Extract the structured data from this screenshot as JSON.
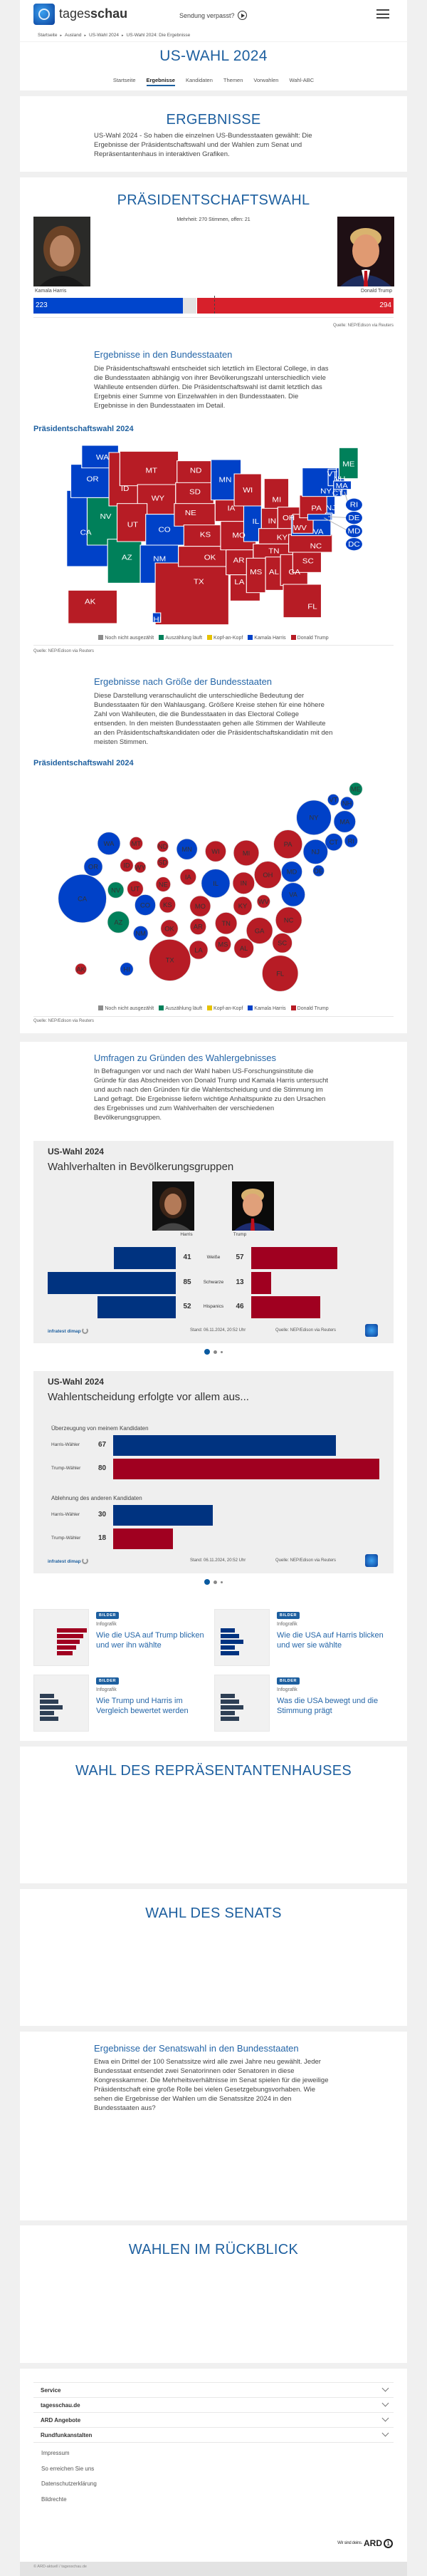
{
  "header": {
    "brand_light": "tages",
    "brand_bold": "schau",
    "missed_broadcast": "Sendung verpasst?"
  },
  "breadcrumb": [
    "Startseite",
    "Ausland",
    "US-Wahl 2024",
    "US-Wahl 2024: Die Ergebnisse"
  ],
  "page_title": "US-WAHL 2024",
  "nav": [
    {
      "label": "Startseite",
      "active": false
    },
    {
      "label": "Ergebnisse",
      "active": true
    },
    {
      "label": "Kandidaten",
      "active": false
    },
    {
      "label": "Themen",
      "active": false
    },
    {
      "label": "Vorwahlen",
      "active": false
    },
    {
      "label": "Wahl-ABC",
      "active": false
    }
  ],
  "intro": {
    "title": "ERGEBNISSE",
    "text": "US-Wahl 2024 - So haben die einzelnen US-Bundesstaaten gewählt: Die Ergebnisse der Präsidentschaftswahl und der Wahlen zum Senat und Repräsentantenhaus in interaktiven Grafiken."
  },
  "colors": {
    "harris": "#0041c8",
    "trump": "#b71c25",
    "counting": "#00805a",
    "not_counted": "#8c8c8c",
    "tossup": "#e6c200",
    "open": "#e2e2e2",
    "harris_dark": "#003380",
    "trump_dark": "#a00020",
    "heading": "#1d5f9f"
  },
  "president": {
    "title": "PRÄSIDENTSCHAFTSWAHL",
    "majority_text": "Mehrheit: 270 Stimmen, offen: 21",
    "total": 538,
    "majority": 270,
    "harris": {
      "name": "Kamala Harris",
      "votes": 223
    },
    "trump": {
      "name": "Donald Trump",
      "votes": 294
    },
    "source": "Quelle: NEP/Edison via Reuters"
  },
  "states_section": {
    "heading": "Ergebnisse in den Bundesstaaten",
    "text": "Die Präsidentschaftswahl entscheidet sich letztlich im Electoral College, in das die Bundesstaaten abhängig von ihrer Bevölkerungszahl unterschiedlich viele Wahlleute entsenden dürfen. Die Präsidentschaftswahl ist damit letztlich das Ergebnis einer Summe von Einzelwahlen in den Bundesstaaten. Die Ergebnisse in den Bundesstaaten im Detail."
  },
  "legend": [
    {
      "key": "not_counted",
      "label": "Noch nicht ausgezählt"
    },
    {
      "key": "counting",
      "label": "Auszählung läuft"
    },
    {
      "key": "tossup",
      "label": "Kopf-an-Kopf"
    },
    {
      "key": "harris",
      "label": "Kamala Harris"
    },
    {
      "key": "trump",
      "label": "Donald Trump"
    }
  ],
  "map": {
    "title": "Präsidentschaftswahl 2024",
    "source": "Quelle: NEP/Edison via Reuters",
    "callouts": [
      "RI",
      "DE",
      "MD",
      "DC"
    ]
  },
  "size_section": {
    "heading": "Ergebnisse nach Größe der Bundesstaaten",
    "text": "Diese Darstellung veranschaulicht die unterschiedliche Bedeutung der Bundesstaaten für den Wahlausgang. Größere Kreise stehen für eine höhere Zahl von Wahlleuten, die die Bundesstaaten in das Electoral College entsenden. In den meisten Bundesstaaten gehen alle Stimmen der Wahlleute an den Präsidentschaftskandidaten oder die Präsidentschaftskandidatin mit den meisten Stimmen.",
    "chart_title": "Präsidentschaftswahl 2024",
    "source": "Quelle: NEP/Edison via Reuters"
  },
  "states": [
    {
      "code": "AL",
      "status": "trump",
      "electors": 9
    },
    {
      "code": "AK",
      "status": "trump",
      "electors": 3
    },
    {
      "code": "AZ",
      "status": "counting",
      "electors": 11
    },
    {
      "code": "AR",
      "status": "trump",
      "electors": 6
    },
    {
      "code": "CA",
      "status": "harris",
      "electors": 54
    },
    {
      "code": "CO",
      "status": "harris",
      "electors": 10
    },
    {
      "code": "CT",
      "status": "harris",
      "electors": 7
    },
    {
      "code": "DE",
      "status": "harris",
      "electors": 3
    },
    {
      "code": "DC",
      "status": "harris",
      "electors": 3
    },
    {
      "code": "FL",
      "status": "trump",
      "electors": 30
    },
    {
      "code": "GA",
      "status": "trump",
      "electors": 16
    },
    {
      "code": "HI",
      "status": "harris",
      "electors": 4
    },
    {
      "code": "ID",
      "status": "trump",
      "electors": 4
    },
    {
      "code": "IL",
      "status": "harris",
      "electors": 19
    },
    {
      "code": "IN",
      "status": "trump",
      "electors": 11
    },
    {
      "code": "IA",
      "status": "trump",
      "electors": 6
    },
    {
      "code": "KS",
      "status": "trump",
      "electors": 6
    },
    {
      "code": "KY",
      "status": "trump",
      "electors": 8
    },
    {
      "code": "LA",
      "status": "trump",
      "electors": 8
    },
    {
      "code": "ME",
      "status": "counting",
      "electors": 4
    },
    {
      "code": "MD",
      "status": "harris",
      "electors": 10
    },
    {
      "code": "MA",
      "status": "harris",
      "electors": 11
    },
    {
      "code": "MI",
      "status": "trump",
      "electors": 15
    },
    {
      "code": "MN",
      "status": "harris",
      "electors": 10
    },
    {
      "code": "MS",
      "status": "trump",
      "electors": 6
    },
    {
      "code": "MO",
      "status": "trump",
      "electors": 10
    },
    {
      "code": "MT",
      "status": "trump",
      "electors": 4
    },
    {
      "code": "NE",
      "status": "trump",
      "electors": 5
    },
    {
      "code": "NV",
      "status": "counting",
      "electors": 6
    },
    {
      "code": "NH",
      "status": "harris",
      "electors": 4
    },
    {
      "code": "NJ",
      "status": "harris",
      "electors": 14
    },
    {
      "code": "NM",
      "status": "harris",
      "electors": 5
    },
    {
      "code": "NY",
      "status": "harris",
      "electors": 28
    },
    {
      "code": "NC",
      "status": "trump",
      "electors": 16
    },
    {
      "code": "ND",
      "status": "trump",
      "electors": 3
    },
    {
      "code": "OH",
      "status": "trump",
      "electors": 17
    },
    {
      "code": "OK",
      "status": "trump",
      "electors": 7
    },
    {
      "code": "OR",
      "status": "harris",
      "electors": 8
    },
    {
      "code": "PA",
      "status": "trump",
      "electors": 19
    },
    {
      "code": "RI",
      "status": "harris",
      "electors": 4
    },
    {
      "code": "SC",
      "status": "trump",
      "electors": 9
    },
    {
      "code": "SD",
      "status": "trump",
      "electors": 3
    },
    {
      "code": "TN",
      "status": "trump",
      "electors": 11
    },
    {
      "code": "TX",
      "status": "trump",
      "electors": 40
    },
    {
      "code": "UT",
      "status": "trump",
      "electors": 6
    },
    {
      "code": "VT",
      "status": "harris",
      "electors": 3
    },
    {
      "code": "VA",
      "status": "harris",
      "electors": 13
    },
    {
      "code": "WA",
      "status": "harris",
      "electors": 12
    },
    {
      "code": "WV",
      "status": "trump",
      "electors": 4
    },
    {
      "code": "WI",
      "status": "trump",
      "electors": 10
    },
    {
      "code": "WY",
      "status": "trump",
      "electors": 3
    }
  ],
  "polls": {
    "heading": "Umfragen zu Gründen des Wahlergebnisses",
    "text": "In Befragungen vor und nach der Wahl haben US-Forschungsinstitute die Gründe für das Abschneiden von Donald Trump und Kamala Harris untersucht und auch nach den Gründen für die Wahlentscheidung und die Stimmung im Land gefragt. Die Ergebnisse liefern wichtige Anhaltspunkte zu den Ursachen des Ergebnisses und zum Wahlverhalten der verschiedenen Bevölkerungsgruppen."
  },
  "chart_data": [
    {
      "type": "bar",
      "label": "US-Wahl 2024",
      "title": "Wahlverhalten in Bevölkerungsgruppen",
      "categories": [
        "Weiße",
        "Schwarze",
        "Hispanics"
      ],
      "series": [
        {
          "name": "Harris",
          "values": [
            41,
            85,
            52
          ]
        },
        {
          "name": "Trump",
          "values": [
            57,
            13,
            46
          ]
        }
      ],
      "brand": "infratest dimap",
      "stand": "Stand:  06.11.2024, 20:52 Uhr",
      "source": "Quelle: NEP/Edison via Reuters"
    },
    {
      "type": "bar",
      "label": "US-Wahl 2024",
      "title": "Wahlentscheidung erfolgte vor allem aus...",
      "groups": [
        {
          "title": "Überzeugung von meinem Kandidaten",
          "rows": [
            {
              "label": "Harris-Wähler",
              "value": 67,
              "party": "harris"
            },
            {
              "label": "Trump-Wähler",
              "value": 80,
              "party": "trump"
            }
          ]
        },
        {
          "title": "Ablehnung des anderen Kandidaten",
          "rows": [
            {
              "label": "Harris-Wähler",
              "value": 30,
              "party": "harris"
            },
            {
              "label": "Trump-Wähler",
              "value": 18,
              "party": "trump"
            }
          ]
        }
      ],
      "brand": "infratest dimap",
      "stand": "Stand:  06.11.2024, 20:52 Uhr",
      "source": "Quelle: NEP/Edison via Reuters"
    }
  ],
  "carousel": {
    "slides": 3,
    "active": 0
  },
  "teasers": [
    {
      "badge": "BILDER",
      "kind": "Infografik",
      "title": "Wie die USA auf Trump blicken und wer ihn wählte"
    },
    {
      "badge": "BILDER",
      "kind": "Infografik",
      "title": "Wie die USA auf Harris blicken und wer sie wählte"
    },
    {
      "badge": "BILDER",
      "kind": "Infografik",
      "title": "Wie Trump und Harris im Vergleich bewertet werden"
    },
    {
      "badge": "BILDER",
      "kind": "Infografik",
      "title": "Was die USA bewegt und die Stimmung prägt"
    }
  ],
  "house": {
    "title": "WAHL DES REPRÄSENTANTENHAUSES"
  },
  "senate": {
    "title": "WAHL DES SENATS"
  },
  "senate_states": {
    "heading": "Ergebnisse der Senatswahl in den Bundesstaaten",
    "text": "Etwa ein Drittel der 100 Senatssitze wird alle zwei Jahre neu gewählt. Jeder Bundesstaat entsendet zwei Senatorinnen oder Senatoren in diese Kongresskammer. Die Mehrheitsverhältnisse im Senat spielen für die jeweilige Präsidentschaft eine große Rolle bei vielen Gesetzgebungsvorhaben. Wie sehen die Ergebnisse der Wahlen um die Senatssitze 2024 in den Bundesstaaten aus?"
  },
  "retro": {
    "title": "WAHLEN IM RÜCKBLICK"
  },
  "footer": {
    "sections": [
      "Service",
      "tagesschau.de",
      "ARD Angebote",
      "Rundfunkanstalten"
    ],
    "links": [
      "Impressum",
      "So erreichen Sie uns",
      "Datenschutzerklärung",
      "Bildrechte"
    ],
    "claim": "Wir sind deins.",
    "ard": "ARD",
    "copyright": "© ARD-aktuell / tagesschau.de"
  }
}
